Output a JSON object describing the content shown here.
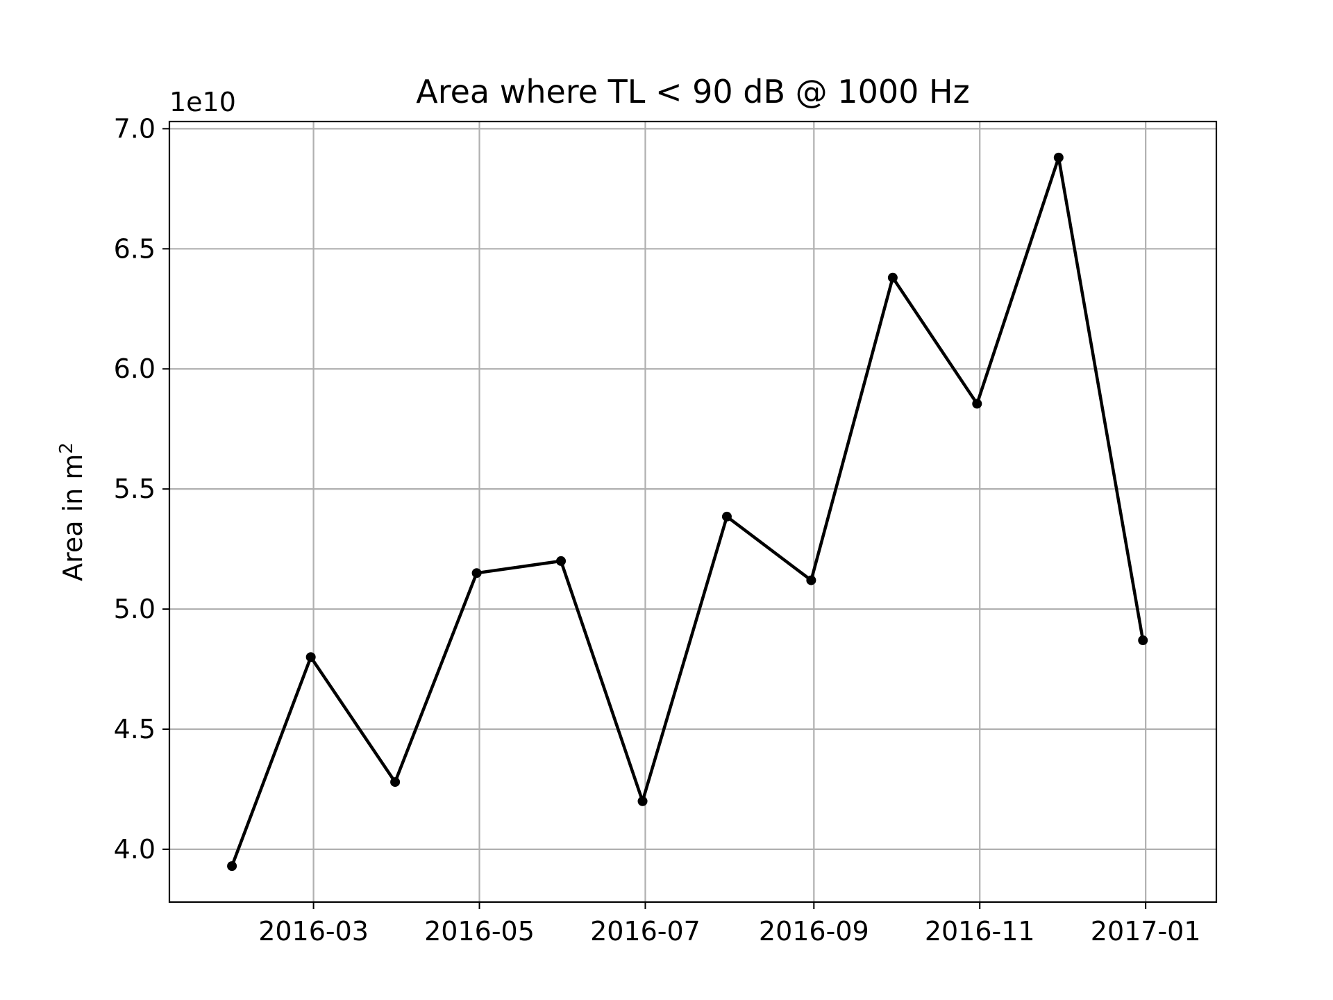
{
  "chart_data": {
    "type": "line",
    "title": "Area where TL < 90 dB @ 1000 Hz",
    "xlabel": "",
    "ylabel": {
      "main": "Area in m",
      "superscript": "2"
    },
    "y_offset_label": "1e10",
    "y_scale_factor": 10000000000,
    "xlim": [
      "2016-01-08",
      "2017-01-27"
    ],
    "ylim": [
      37800000000,
      70300000000
    ],
    "grid": true,
    "legend": "none",
    "x_ticks": [
      {
        "date": "2016-03-01",
        "label": "2016-03"
      },
      {
        "date": "2016-05-01",
        "label": "2016-05"
      },
      {
        "date": "2016-07-01",
        "label": "2016-07"
      },
      {
        "date": "2016-09-01",
        "label": "2016-09"
      },
      {
        "date": "2016-11-01",
        "label": "2016-11"
      },
      {
        "date": "2017-01-01",
        "label": "2017-01"
      }
    ],
    "y_ticks": [
      {
        "value": 40000000000,
        "label": "4.0"
      },
      {
        "value": 45000000000,
        "label": "4.5"
      },
      {
        "value": 50000000000,
        "label": "5.0"
      },
      {
        "value": 55000000000,
        "label": "5.5"
      },
      {
        "value": 60000000000,
        "label": "6.0"
      },
      {
        "value": 65000000000,
        "label": "6.5"
      },
      {
        "value": 70000000000,
        "label": "7.0"
      }
    ],
    "series": [
      {
        "color": "#000000",
        "marker": "circle",
        "points": [
          {
            "x": "2016-01-31",
            "y": 39300000000
          },
          {
            "x": "2016-02-29",
            "y": 48000000000
          },
          {
            "x": "2016-03-31",
            "y": 42800000000
          },
          {
            "x": "2016-04-30",
            "y": 51500000000
          },
          {
            "x": "2016-05-31",
            "y": 52000000000
          },
          {
            "x": "2016-06-30",
            "y": 42000000000
          },
          {
            "x": "2016-07-31",
            "y": 53850000000
          },
          {
            "x": "2016-08-31",
            "y": 51200000000
          },
          {
            "x": "2016-09-30",
            "y": 63800000000
          },
          {
            "x": "2016-10-31",
            "y": 58550000000
          },
          {
            "x": "2016-11-30",
            "y": 68800000000
          },
          {
            "x": "2016-12-31",
            "y": 48700000000
          }
        ]
      }
    ]
  }
}
